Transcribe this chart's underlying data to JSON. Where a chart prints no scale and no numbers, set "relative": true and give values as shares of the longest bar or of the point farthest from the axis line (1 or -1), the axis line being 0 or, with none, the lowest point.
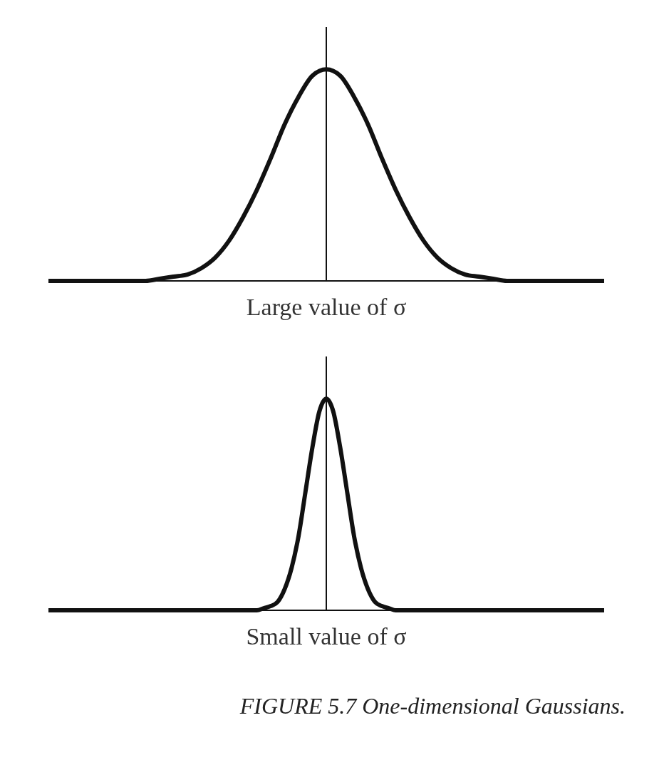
{
  "chart_data": [
    {
      "type": "line",
      "relative": true,
      "xlabel": "Large value of σ",
      "categories": [
        null,
        null,
        null,
        null,
        null,
        null,
        null,
        null,
        null,
        null,
        null,
        null,
        null,
        null,
        null,
        null,
        null,
        null,
        null,
        null,
        null,
        null,
        null,
        null,
        null,
        null,
        null,
        null,
        null,
        null,
        null,
        null,
        null,
        null,
        null,
        null,
        null,
        null,
        null,
        null,
        null
      ],
      "series": [
        {
          "color": "#111111",
          "values": [
            0,
            0,
            0,
            0,
            0,
            0,
            0,
            0,
            0.01,
            0.02,
            0.03,
            0.06,
            0.11,
            0.19,
            0.3,
            0.43,
            0.58,
            0.74,
            0.87,
            0.97,
            1,
            0.97,
            0.87,
            0.74,
            0.58,
            0.43,
            0.3,
            0.19,
            0.11,
            0.06,
            0.03,
            0.02,
            0.01,
            0,
            0,
            0,
            0,
            0,
            0,
            0,
            0
          ]
        }
      ],
      "marker": "none",
      "tick_labels": false
    },
    {
      "type": "line",
      "relative": true,
      "xlabel": "Small value of σ",
      "categories": [
        null,
        null,
        null,
        null,
        null,
        null,
        null,
        null,
        null,
        null,
        null,
        null,
        null,
        null,
        null,
        null,
        null,
        null,
        null,
        null,
        null,
        null,
        null,
        null,
        null,
        null,
        null,
        null,
        null,
        null,
        null,
        null,
        null,
        null,
        null,
        null,
        null,
        null,
        null,
        null,
        null,
        null,
        null,
        null,
        null,
        null,
        null,
        null,
        null,
        null,
        null,
        null,
        null,
        null,
        null,
        null,
        null,
        null,
        null,
        null,
        null,
        null,
        null,
        null,
        null,
        null,
        null,
        null,
        null,
        null,
        null,
        null,
        null,
        null,
        null,
        null,
        null,
        null,
        null,
        null,
        null
      ],
      "series": [
        {
          "color": "#111111",
          "values": [
            0,
            0,
            0,
            0,
            0,
            0,
            0,
            0,
            0,
            0,
            0,
            0,
            0,
            0,
            0,
            0,
            0,
            0,
            0,
            0,
            0,
            0,
            0,
            0,
            0,
            0,
            0,
            0,
            0,
            0,
            0,
            0.01,
            0.02,
            0.04,
            0.1,
            0.2,
            0.35,
            0.56,
            0.77,
            0.94,
            1,
            0.94,
            0.77,
            0.56,
            0.35,
            0.2,
            0.1,
            0.04,
            0.02,
            0.01,
            0,
            0,
            0,
            0,
            0,
            0,
            0,
            0,
            0,
            0,
            0,
            0,
            0,
            0,
            0,
            0,
            0,
            0,
            0,
            0,
            0,
            0,
            0,
            0,
            0,
            0,
            0,
            0,
            0,
            0,
            0
          ]
        }
      ],
      "marker": "none",
      "tick_labels": false,
      "annotations": [
        "FIGURE 5.7 One-dimensional Gaussians."
      ]
    }
  ]
}
